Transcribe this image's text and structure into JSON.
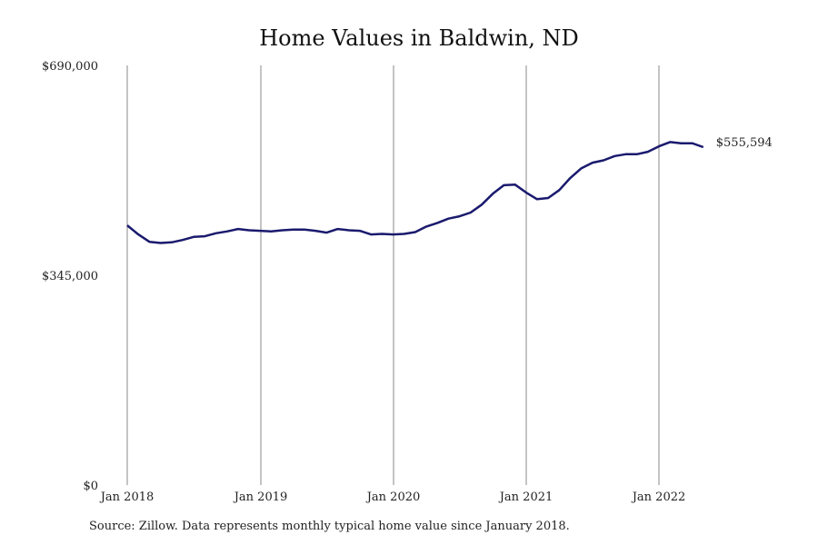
{
  "chart_data": {
    "type": "line",
    "title": "Home Values in Baldwin, ND",
    "xlabel": "",
    "ylabel": "",
    "y_ticks": [
      "$0",
      "$345,000",
      "$690,000"
    ],
    "y_tick_values": [
      0,
      345000,
      690000
    ],
    "ylim": [
      0,
      690000
    ],
    "x_ticks": [
      "Jan 2018",
      "Jan 2019",
      "Jan 2020",
      "Jan 2021",
      "Jan 2022"
    ],
    "grid": "vertical at x ticks",
    "end_label": "$555,594",
    "line_color": "#1a1a6e",
    "series": [
      {
        "x": [
          "2018-01",
          "2018-02",
          "2018-03",
          "2018-04",
          "2018-05",
          "2018-06",
          "2018-07",
          "2018-08",
          "2018-09",
          "2018-10",
          "2018-11",
          "2018-12",
          "2019-01",
          "2019-02",
          "2019-03",
          "2019-04",
          "2019-05",
          "2019-06",
          "2019-07",
          "2019-08",
          "2019-09",
          "2019-10",
          "2019-11",
          "2019-12",
          "2020-01",
          "2020-02",
          "2020-03",
          "2020-04",
          "2020-05",
          "2020-06",
          "2020-07",
          "2020-08",
          "2020-09",
          "2020-10",
          "2020-11",
          "2020-12",
          "2021-01",
          "2021-02",
          "2021-03",
          "2021-04",
          "2021-05",
          "2021-06",
          "2021-07",
          "2021-08",
          "2021-09",
          "2021-10",
          "2021-11",
          "2021-12",
          "2022-01",
          "2022-02",
          "2022-03",
          "2022-04",
          "2022-05"
        ],
        "values": [
          427000,
          412000,
          400000,
          398000,
          399000,
          403000,
          408000,
          409000,
          414000,
          417000,
          421000,
          419000,
          418000,
          417000,
          419000,
          420000,
          420000,
          418000,
          415000,
          421000,
          419000,
          418000,
          412000,
          413000,
          412000,
          413000,
          416000,
          425000,
          431000,
          438000,
          442000,
          448000,
          461000,
          479000,
          493000,
          494000,
          481000,
          470000,
          472000,
          485000,
          505000,
          521000,
          530000,
          534000,
          541000,
          544000,
          544000,
          548000,
          557000,
          564000,
          562000,
          562000,
          555594
        ]
      }
    ]
  },
  "source_note": "Source: Zillow. Data represents monthly typical home value since January 2018."
}
